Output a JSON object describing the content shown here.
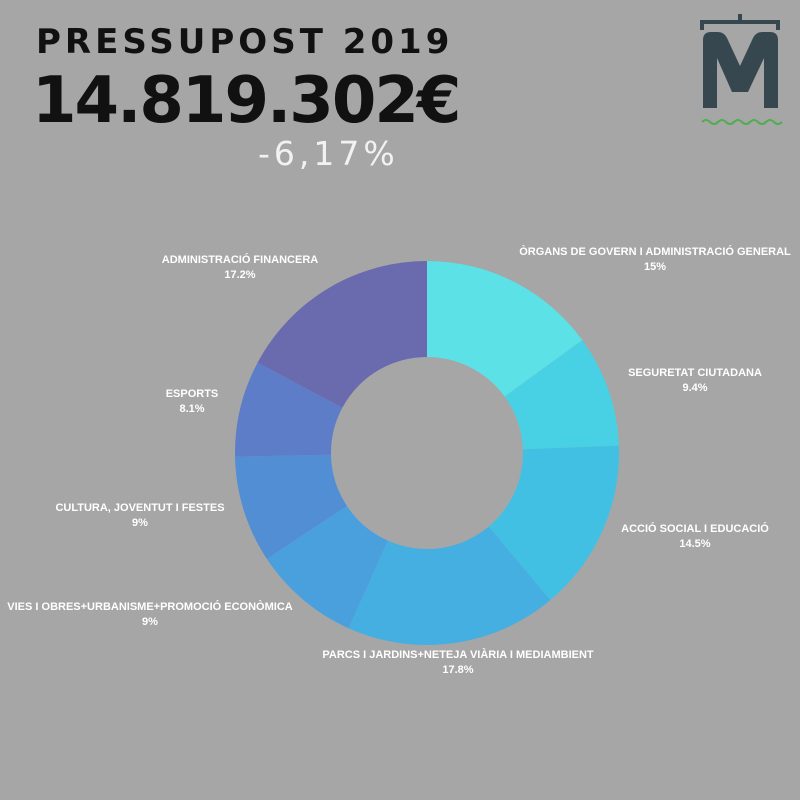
{
  "header": {
    "title": "PRESSUPOST 2019",
    "amount": "14.819.302€",
    "change": "-6,17%"
  },
  "logo": {
    "icon": "m-logo-icon",
    "color": "#37474f",
    "accent": "#4caf50"
  },
  "chart_data": {
    "type": "pie",
    "donut": true,
    "slices": [
      {
        "label": "ÒRGANS DE GOVERN I ADMINISTRACIÓ GENERAL",
        "value": 15,
        "value_label": "15%",
        "color": "#5ce1e6"
      },
      {
        "label": "SEGURETAT CIUTADANA",
        "value": 9.4,
        "value_label": "9.4%",
        "color": "#48d1e4"
      },
      {
        "label": "ACCIÓ SOCIAL I EDUCACIÓ",
        "value": 14.5,
        "value_label": "14.5%",
        "color": "#42c0e4"
      },
      {
        "label": "PARCS I JARDINS+NETEJA VIÀRIA I MEDIAMBIENT",
        "value": 17.8,
        "value_label": "17.8%",
        "color": "#45afe1"
      },
      {
        "label": "VIES I OBRES+URBANISME+PROMOCIÓ ECONÒMICA",
        "value": 9,
        "value_label": "9%",
        "color": "#4aa0dd"
      },
      {
        "label": "CULTURA, JOVENTUT I FESTES",
        "value": 9,
        "value_label": "9%",
        "color": "#528ed4"
      },
      {
        "label": "ESPORTS",
        "value": 8.1,
        "value_label": "8.1%",
        "color": "#5e7dc8"
      },
      {
        "label": "ADMINISTRACIÓ FINANCERA",
        "value": 17.2,
        "value_label": "17.2%",
        "color": "#6a6aaf"
      }
    ]
  }
}
